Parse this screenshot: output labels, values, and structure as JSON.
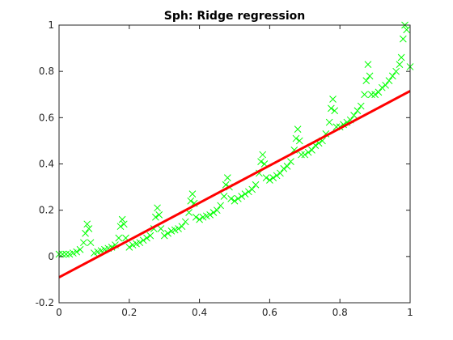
{
  "chart_data": {
    "type": "scatter",
    "title": "Sph: Ridge regression",
    "xlabel": "",
    "ylabel": "",
    "xlim": [
      0,
      1
    ],
    "ylim": [
      -0.2,
      1
    ],
    "xticks": [
      0,
      0.2,
      0.4,
      0.6,
      0.8,
      1
    ],
    "yticks": [
      -0.2,
      0,
      0.2,
      0.4,
      0.6,
      0.8,
      1
    ],
    "xtick_labels": [
      "0",
      "0.2",
      "0.4",
      "0.6",
      "0.8",
      "1"
    ],
    "ytick_labels": [
      "-0.2",
      "0",
      "0.2",
      "0.4",
      "0.6",
      "0.8",
      "1"
    ],
    "grid": false,
    "series": [
      {
        "kind": "scatter",
        "marker": "x",
        "color": "#00ff00",
        "x": [
          0.0,
          0.01,
          0.02,
          0.03,
          0.04,
          0.05,
          0.06,
          0.07,
          0.075,
          0.08,
          0.085,
          0.09,
          0.1,
          0.11,
          0.12,
          0.13,
          0.14,
          0.15,
          0.16,
          0.17,
          0.175,
          0.18,
          0.185,
          0.19,
          0.2,
          0.21,
          0.22,
          0.23,
          0.24,
          0.25,
          0.26,
          0.27,
          0.275,
          0.28,
          0.285,
          0.29,
          0.3,
          0.31,
          0.32,
          0.33,
          0.34,
          0.35,
          0.36,
          0.37,
          0.375,
          0.38,
          0.385,
          0.39,
          0.4,
          0.41,
          0.42,
          0.43,
          0.44,
          0.45,
          0.46,
          0.47,
          0.475,
          0.48,
          0.485,
          0.49,
          0.5,
          0.51,
          0.52,
          0.53,
          0.54,
          0.55,
          0.56,
          0.57,
          0.575,
          0.58,
          0.585,
          0.59,
          0.6,
          0.61,
          0.62,
          0.63,
          0.64,
          0.65,
          0.66,
          0.67,
          0.675,
          0.68,
          0.685,
          0.69,
          0.7,
          0.71,
          0.72,
          0.73,
          0.74,
          0.75,
          0.76,
          0.77,
          0.775,
          0.78,
          0.785,
          0.79,
          0.8,
          0.81,
          0.82,
          0.83,
          0.84,
          0.85,
          0.86,
          0.87,
          0.875,
          0.88,
          0.885,
          0.89,
          0.9,
          0.91,
          0.92,
          0.93,
          0.94,
          0.95,
          0.96,
          0.97,
          0.975,
          0.98,
          0.985,
          0.99,
          1.0
        ],
        "y": [
          0.01,
          0.01,
          0.01,
          0.01,
          0.015,
          0.02,
          0.03,
          0.06,
          0.1,
          0.14,
          0.12,
          0.06,
          0.015,
          0.02,
          0.025,
          0.03,
          0.035,
          0.04,
          0.05,
          0.08,
          0.13,
          0.16,
          0.14,
          0.08,
          0.04,
          0.05,
          0.055,
          0.06,
          0.07,
          0.08,
          0.09,
          0.12,
          0.17,
          0.21,
          0.18,
          0.12,
          0.09,
          0.1,
          0.11,
          0.115,
          0.12,
          0.13,
          0.15,
          0.19,
          0.24,
          0.27,
          0.23,
          0.17,
          0.16,
          0.17,
          0.175,
          0.18,
          0.19,
          0.2,
          0.22,
          0.26,
          0.31,
          0.34,
          0.3,
          0.25,
          0.24,
          0.25,
          0.26,
          0.27,
          0.28,
          0.29,
          0.31,
          0.36,
          0.41,
          0.44,
          0.4,
          0.34,
          0.33,
          0.34,
          0.35,
          0.36,
          0.38,
          0.39,
          0.41,
          0.46,
          0.51,
          0.55,
          0.5,
          0.44,
          0.44,
          0.45,
          0.46,
          0.48,
          0.49,
          0.5,
          0.53,
          0.58,
          0.64,
          0.68,
          0.63,
          0.56,
          0.56,
          0.57,
          0.58,
          0.59,
          0.61,
          0.63,
          0.65,
          0.7,
          0.76,
          0.83,
          0.78,
          0.7,
          0.7,
          0.71,
          0.73,
          0.74,
          0.76,
          0.78,
          0.8,
          0.83,
          0.86,
          0.94,
          1.0,
          0.98,
          0.82
        ]
      },
      {
        "kind": "line",
        "color": "#ff0000",
        "x": [
          0,
          1
        ],
        "y": [
          -0.09,
          0.715
        ]
      }
    ]
  }
}
